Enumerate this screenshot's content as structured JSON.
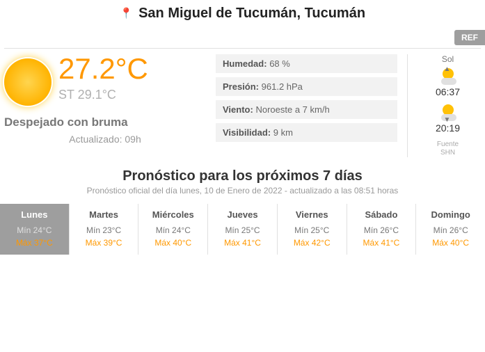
{
  "location": "San Miguel de Tucumán, Tucumán",
  "ref_label": "REF",
  "current": {
    "temperature": "27.2°C",
    "feels_like": "ST 29.1°C",
    "description": "Despejado con bruma",
    "updated": "Actualizado: 09h"
  },
  "metrics": {
    "humidity_label": "Humedad:",
    "humidity_value": "68 %",
    "pressure_label": "Presión:",
    "pressure_value": "961.2 hPa",
    "wind_label": "Viento:",
    "wind_value": "Noroeste a 7 km/h",
    "visibility_label": "Visibilidad:",
    "visibility_value": "9 km"
  },
  "sun": {
    "label": "Sol",
    "sunrise": "06:37",
    "sunset": "20:19",
    "source_label": "Fuente",
    "source_value": "SHN"
  },
  "forecast": {
    "title": "Pronóstico para los próximos 7 días",
    "subtitle": "Pronóstico oficial del día lunes, 10 de Enero de 2022 - actualizado a las 08:51 horas",
    "days": [
      {
        "name": "Lunes",
        "min": "Mín 24°C",
        "max": "Máx 37°C",
        "active": true
      },
      {
        "name": "Martes",
        "min": "Mín 23°C",
        "max": "Máx 39°C",
        "active": false
      },
      {
        "name": "Miércoles",
        "min": "Mín 24°C",
        "max": "Máx 40°C",
        "active": false
      },
      {
        "name": "Jueves",
        "min": "Mín 25°C",
        "max": "Máx 41°C",
        "active": false
      },
      {
        "name": "Viernes",
        "min": "Mín 25°C",
        "max": "Máx 42°C",
        "active": false
      },
      {
        "name": "Sábado",
        "min": "Mín 26°C",
        "max": "Máx 41°C",
        "active": false
      },
      {
        "name": "Domingo",
        "min": "Mín 26°C",
        "max": "Máx 40°C",
        "active": false
      }
    ]
  }
}
